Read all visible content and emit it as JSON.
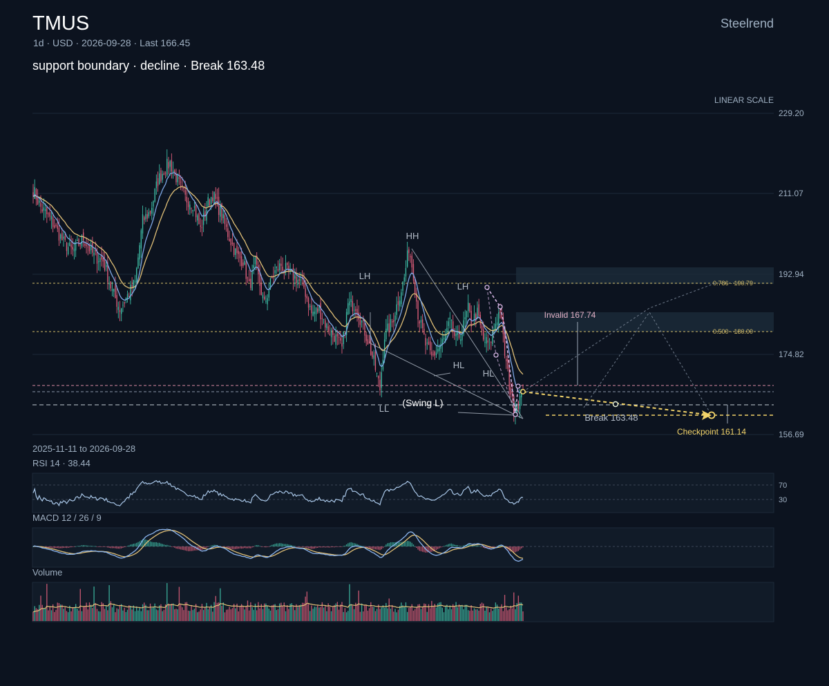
{
  "header": {
    "symbol": "TMUS",
    "brand": "Steelrend",
    "meta": "1d · USD · 2026-09-28 · Last 166.45",
    "subtitle": "support boundary · decline · Break 163.48",
    "scale_label": "LINEAR SCALE",
    "date_range": "2025-11-11 to 2026-09-28"
  },
  "colors": {
    "background": "#0c131f",
    "grid": "#1d2a38",
    "up_candle": "#3fbfa7",
    "down_candle": "#e05f7b",
    "ma_fast": "#7fa8e6",
    "ma_slow": "#e2c178",
    "projection": "#f3d46a",
    "structure": "#b3bcc8",
    "fib": "#d9c06a",
    "pink_path": "#d8b7e6",
    "rsi_line": "#a9c7e8",
    "macd_line": "#8cb6f0",
    "signal_line": "#e2c178"
  },
  "chart_data": {
    "type": "candlestick",
    "symbol": "TMUS",
    "interval": "1d",
    "currency": "USD",
    "date_start": "2025-11-11",
    "date_end": "2026-09-28",
    "last": 166.45,
    "scale": "linear",
    "ylim": [
      156.69,
      229.2
    ],
    "y_ticks": [
      "229.20",
      "211.07",
      "192.94",
      "174.82",
      "156.69"
    ],
    "grid": true,
    "moving_averages": [
      "fast",
      "slow"
    ],
    "close_anchors": [
      [
        0,
        212
      ],
      [
        5,
        208
      ],
      [
        12,
        205
      ],
      [
        20,
        200
      ],
      [
        26,
        198
      ],
      [
        33,
        201
      ],
      [
        40,
        197
      ],
      [
        46,
        196
      ],
      [
        52,
        189
      ],
      [
        57,
        185
      ],
      [
        62,
        188
      ],
      [
        67,
        191
      ],
      [
        72,
        205
      ],
      [
        77,
        207
      ],
      [
        82,
        214
      ],
      [
        87,
        217
      ],
      [
        90,
        218
      ],
      [
        95,
        214
      ],
      [
        100,
        210
      ],
      [
        105,
        209
      ],
      [
        110,
        203
      ],
      [
        115,
        209
      ],
      [
        118,
        211
      ],
      [
        123,
        207
      ],
      [
        128,
        202
      ],
      [
        134,
        197
      ],
      [
        138,
        196
      ],
      [
        142,
        190
      ],
      [
        146,
        195
      ],
      [
        152,
        186
      ],
      [
        158,
        193
      ],
      [
        163,
        195
      ],
      [
        168,
        193
      ],
      [
        173,
        192
      ],
      [
        178,
        190
      ],
      [
        183,
        184
      ],
      [
        188,
        185
      ],
      [
        193,
        181
      ],
      [
        198,
        179
      ],
      [
        203,
        176
      ],
      [
        207,
        186
      ],
      [
        212,
        186
      ],
      [
        216,
        182
      ],
      [
        220,
        178
      ],
      [
        224,
        173
      ],
      [
        228,
        167
      ],
      [
        231,
        179
      ],
      [
        236,
        182
      ],
      [
        240,
        187
      ],
      [
        244,
        192
      ],
      [
        247,
        199
      ],
      [
        250,
        193
      ],
      [
        253,
        184
      ],
      [
        258,
        177
      ],
      [
        262,
        174
      ],
      [
        266,
        176
      ],
      [
        270,
        178
      ],
      [
        274,
        182
      ],
      [
        278,
        178
      ],
      [
        282,
        180
      ],
      [
        286,
        185
      ],
      [
        288,
        182
      ],
      [
        292,
        184
      ],
      [
        296,
        178
      ],
      [
        300,
        177
      ],
      [
        304,
        182
      ],
      [
        307,
        185
      ],
      [
        310,
        175
      ],
      [
        313,
        168
      ],
      [
        316,
        163
      ],
      [
        319,
        164
      ],
      [
        322,
        166.45
      ]
    ],
    "annotations": {
      "swing_labels": [
        "HH",
        "LH",
        "LH",
        "HL",
        "HL",
        "LL",
        "(Swing L)"
      ],
      "invalid_label": "Invalid 167.74",
      "invalid_level": 167.74,
      "break_label": "Break 163.48",
      "break_level": 163.48,
      "checkpoint_label": "Checkpoint 161.14",
      "checkpoint_level": 161.14,
      "fib_levels": [
        {
          "label": "0.786 · 190.79",
          "value": 190.79
        },
        {
          "label": "0.500 · 180.00",
          "value": 180.0
        }
      ]
    },
    "panels": {
      "rsi": {
        "label": "RSI 14 · 38.44",
        "value": 38.44,
        "levels": [
          "70",
          "30"
        ],
        "ylim": [
          0,
          100
        ]
      },
      "macd": {
        "label": "MACD 12 / 26 / 9",
        "fast": 12,
        "slow": 26,
        "signal": 9
      },
      "volume": {
        "label": "Volume"
      }
    }
  }
}
